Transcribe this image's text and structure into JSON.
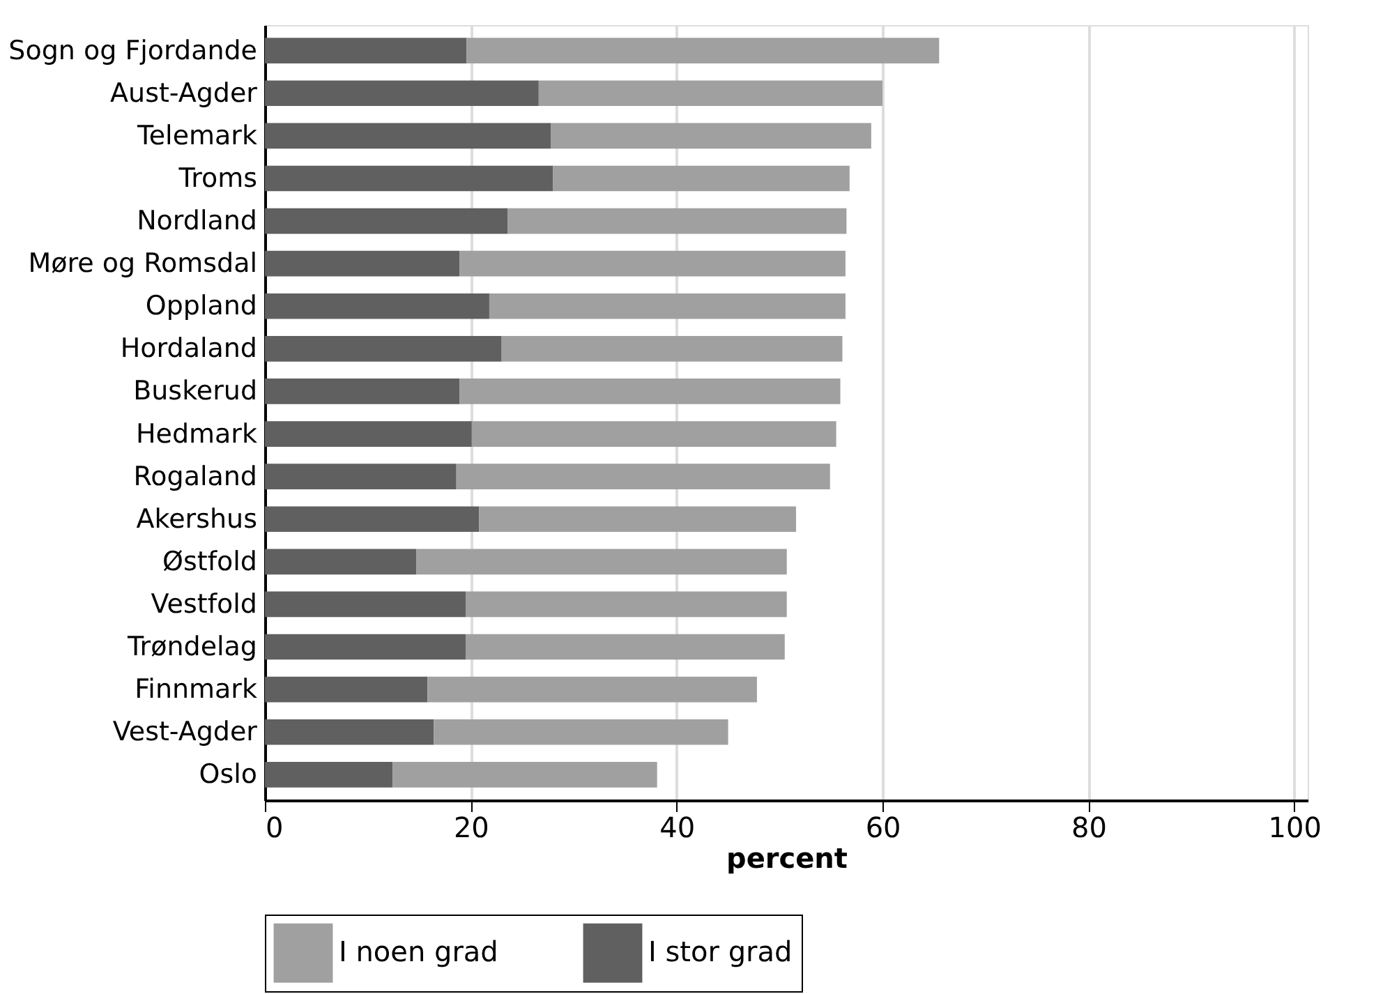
{
  "chart_data": {
    "type": "bar",
    "orientation": "horizontal",
    "stacked": true,
    "xlabel": "percent",
    "categories": [
      "Sogn og Fjordande",
      "Aust-Agder",
      "Telemark",
      "Troms",
      "Nordland",
      "Møre og Romsdal",
      "Oppland",
      "Hordaland",
      "Buskerud",
      "Hedmark",
      "Rogaland",
      "Akershus",
      "Østfold",
      "Vestfold",
      "Trøndelag",
      "Finnmark",
      "Vest-Agder",
      "Oslo"
    ],
    "series": [
      {
        "name": "I stor grad",
        "color": "#606060",
        "values": [
          19.6,
          26.6,
          27.8,
          28.0,
          23.6,
          18.9,
          21.8,
          23.0,
          18.9,
          20.1,
          18.6,
          20.8,
          14.7,
          19.5,
          19.5,
          15.8,
          16.4,
          12.4
        ]
      },
      {
        "name": "I noen grad",
        "color": "#a0a0a0",
        "values": [
          45.9,
          33.4,
          31.1,
          28.8,
          32.9,
          37.5,
          34.6,
          33.1,
          37.0,
          35.4,
          36.3,
          30.8,
          36.0,
          31.2,
          31.0,
          32.0,
          28.6,
          25.7
        ]
      }
    ],
    "xlim": [
      0,
      101.3
    ],
    "xticks": [
      0,
      20,
      40,
      60,
      80,
      100
    ],
    "grid": "x",
    "legend": "bottom"
  }
}
